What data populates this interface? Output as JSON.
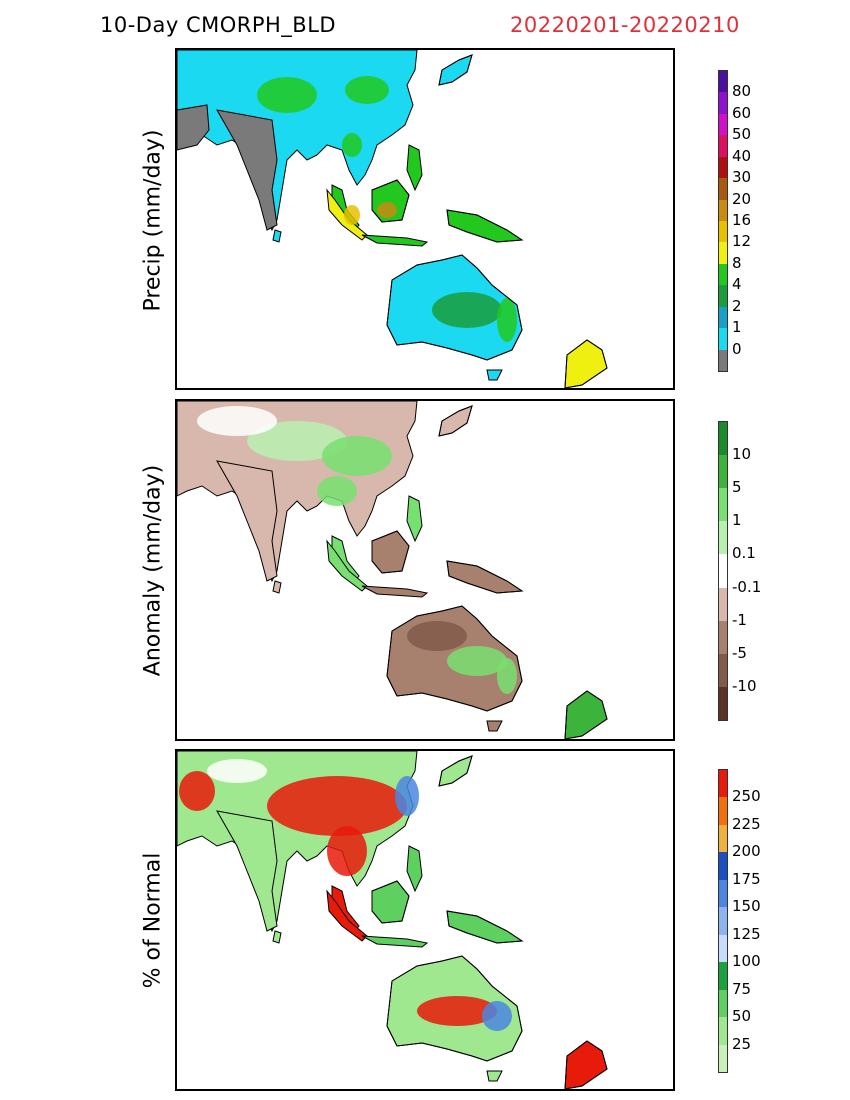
{
  "header": {
    "title": "10-Day CMORPH_BLD",
    "period": "20220201-20220210",
    "period_color": "#e0303a"
  },
  "panels": [
    {
      "id": "precip",
      "ylabel": "Precip (mm/day)",
      "colorbar": [
        {
          "label": "",
          "color": "#7a7a7a"
        },
        {
          "label": "0",
          "color": "#1ad9f0"
        },
        {
          "label": "1",
          "color": "#19a0c8"
        },
        {
          "label": "2",
          "color": "#1a9e3c"
        },
        {
          "label": "4",
          "color": "#22c81e"
        },
        {
          "label": "8",
          "color": "#f0f010"
        },
        {
          "label": "12",
          "color": "#e8c000"
        },
        {
          "label": "16",
          "color": "#c88a10"
        },
        {
          "label": "20",
          "color": "#a85a10"
        },
        {
          "label": "30",
          "color": "#b01010"
        },
        {
          "label": "40",
          "color": "#e01060"
        },
        {
          "label": "50",
          "color": "#d010c8"
        },
        {
          "label": "60",
          "color": "#9010d0"
        },
        {
          "label": "80",
          "color": "#4a10a0"
        }
      ]
    },
    {
      "id": "anomaly",
      "ylabel": "Anomaly (mm/day)",
      "colorbar": [
        {
          "label": "",
          "color": "#5a3228"
        },
        {
          "label": "-10",
          "color": "#825a4a"
        },
        {
          "label": "-5",
          "color": "#a8806e"
        },
        {
          "label": "-1",
          "color": "#d8b8ac"
        },
        {
          "label": "-0.1",
          "color": "#ffffff"
        },
        {
          "label": "0.1",
          "color": "#b8f0b0"
        },
        {
          "label": "1",
          "color": "#78e070"
        },
        {
          "label": "5",
          "color": "#3cb43c"
        },
        {
          "label": "10",
          "color": "#1a8a2a"
        }
      ]
    },
    {
      "id": "percent",
      "ylabel": "% of Normal",
      "colorbar": [
        {
          "label": "",
          "color": "#c8f0b8"
        },
        {
          "label": "25",
          "color": "#a0e890"
        },
        {
          "label": "50",
          "color": "#5ed060"
        },
        {
          "label": "75",
          "color": "#1aa03c"
        },
        {
          "label": "100",
          "color": "#c8dcff"
        },
        {
          "label": "125",
          "color": "#8cb4f0"
        },
        {
          "label": "150",
          "color": "#4a86e0"
        },
        {
          "label": "175",
          "color": "#1a50c0"
        },
        {
          "label": "200",
          "color": "#f0b040"
        },
        {
          "label": "225",
          "color": "#f07010"
        },
        {
          "label": "250",
          "color": "#e81a0a"
        }
      ]
    }
  ],
  "map_colors": {
    "land_outline": "#000000",
    "dry": "#7a7a7a",
    "ocean": "#ffffff"
  }
}
